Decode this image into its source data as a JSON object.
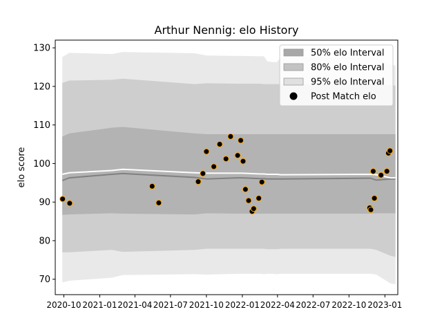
{
  "chart_data": {
    "type": "area",
    "title": "Arthur Nennig: elo History",
    "xlabel": "",
    "ylabel": "elo score",
    "xlim": [
      "2020-09-09",
      "2023-02-03"
    ],
    "ylim": [
      66,
      132
    ],
    "x_ticks": [
      {
        "date": "2020-10-01",
        "label": "2020-10"
      },
      {
        "date": "2021-01-01",
        "label": "2021-01"
      },
      {
        "date": "2021-04-01",
        "label": "2021-04"
      },
      {
        "date": "2021-07-01",
        "label": "2021-07"
      },
      {
        "date": "2021-10-01",
        "label": "2021-10"
      },
      {
        "date": "2022-01-01",
        "label": "2022-01"
      },
      {
        "date": "2022-04-01",
        "label": "2022-04"
      },
      {
        "date": "2022-07-01",
        "label": "2022-07"
      },
      {
        "date": "2022-10-01",
        "label": "2022-10"
      },
      {
        "date": "2023-01-01",
        "label": "2023-01"
      }
    ],
    "y_ticks": [
      70,
      80,
      90,
      100,
      110,
      120,
      130
    ],
    "grid": false,
    "legend_position": "top-right",
    "legend": [
      {
        "label": "50% elo Interval",
        "kind": "patch",
        "color": "#a8a8a8"
      },
      {
        "label": "80% elo Interval",
        "kind": "patch",
        "color": "#c3c3c3"
      },
      {
        "label": "95% elo Interval",
        "kind": "patch",
        "color": "#e0e0e0"
      },
      {
        "label": "Post Match elo",
        "kind": "marker",
        "color": "#000000"
      }
    ],
    "colors": {
      "band_50": "#a9a9a9",
      "band_80": "#c4c4c4",
      "band_95": "#e2e2e2",
      "mean_line": "#808080",
      "post_match_line": "#ffffff",
      "point_fill": "#000000",
      "point_edge": "#ffa500"
    },
    "series": [
      {
        "name": "95% elo Interval",
        "x": [
          "2020-09-27",
          "2020-10-15",
          "2021-02-01",
          "2021-03-01",
          "2021-09-01",
          "2021-10-01",
          "2021-12-20",
          "2022-01-01",
          "2022-02-15",
          "2022-02-25",
          "2022-03-06",
          "2022-03-20",
          "2022-03-30",
          "2022-04-10",
          "2022-11-25",
          "2022-12-10",
          "2023-01-15",
          "2023-01-28"
        ],
        "lower": [
          69.2,
          69.6,
          70.4,
          71.1,
          71.3,
          71.2,
          71.4,
          71.4,
          71.4,
          71.3,
          71.4,
          71.4,
          71.3,
          71.4,
          71.4,
          71.2,
          68.9,
          68.7
        ],
        "upper": [
          127.6,
          128.7,
          128.4,
          128.9,
          128.6,
          128.0,
          127.9,
          127.9,
          127.8,
          127.8,
          126.5,
          126.3,
          126.3,
          127.5,
          127.7,
          127.3,
          125.7,
          125.4
        ]
      },
      {
        "name": "80% elo Interval",
        "x": [
          "2020-09-27",
          "2020-10-15",
          "2021-02-01",
          "2021-03-01",
          "2021-09-01",
          "2021-10-01",
          "2021-12-20",
          "2022-01-01",
          "2022-02-15",
          "2022-02-25",
          "2022-03-06",
          "2022-03-20",
          "2022-03-30",
          "2022-04-10",
          "2022-11-25",
          "2022-12-10",
          "2023-01-15",
          "2023-01-28"
        ],
        "lower": [
          77.0,
          77.0,
          77.6,
          77.1,
          77.6,
          77.9,
          77.9,
          77.9,
          77.9,
          77.9,
          77.8,
          77.8,
          77.8,
          77.9,
          77.9,
          77.6,
          76.1,
          75.8
        ],
        "upper": [
          120.9,
          121.5,
          121.7,
          122.0,
          120.6,
          120.8,
          120.7,
          120.7,
          120.7,
          120.6,
          120.6,
          120.6,
          120.6,
          120.6,
          120.7,
          120.5,
          120.3,
          120.2
        ]
      },
      {
        "name": "50% elo Interval",
        "x": [
          "2020-09-27",
          "2020-10-15",
          "2021-02-01",
          "2021-03-01",
          "2021-09-01",
          "2021-10-01",
          "2021-12-20",
          "2022-01-01",
          "2022-02-15",
          "2022-02-25",
          "2022-03-06",
          "2022-03-20",
          "2022-03-30",
          "2022-04-10",
          "2022-11-25",
          "2022-12-10",
          "2023-01-15",
          "2023-01-28"
        ],
        "lower": [
          86.7,
          86.8,
          87.1,
          87.0,
          86.8,
          87.1,
          87.0,
          87.0,
          87.0,
          87.0,
          87.0,
          87.0,
          87.0,
          87.0,
          87.0,
          87.1,
          87.1,
          87.1
        ],
        "upper": [
          107.0,
          107.8,
          109.3,
          109.5,
          107.8,
          107.6,
          107.6,
          107.6,
          107.6,
          107.6,
          107.6,
          107.6,
          107.6,
          107.6,
          107.6,
          107.6,
          107.6,
          107.6
        ]
      },
      {
        "name": "mean",
        "x": [
          "2020-09-27",
          "2020-10-15",
          "2021-02-01",
          "2021-03-01",
          "2021-09-01",
          "2021-10-01",
          "2021-12-20",
          "2022-01-01",
          "2022-02-15",
          "2022-02-25",
          "2022-03-06",
          "2022-03-20",
          "2022-03-30",
          "2022-04-10",
          "2022-11-25",
          "2022-12-10",
          "2023-01-15",
          "2023-01-28"
        ],
        "y": [
          95.6,
          96.3,
          97.2,
          97.4,
          96.4,
          96.0,
          96.3,
          96.3,
          96.1,
          96.1,
          96.0,
          96.0,
          96.0,
          96.0,
          96.2,
          95.7,
          96.0,
          96.0
        ]
      },
      {
        "name": "post_match",
        "x": [
          "2020-09-27",
          "2020-10-15",
          "2021-02-01",
          "2021-03-01",
          "2021-09-01",
          "2021-10-01",
          "2021-12-20",
          "2022-01-01",
          "2022-02-15",
          "2022-02-25",
          "2022-03-06",
          "2022-03-20",
          "2022-03-30",
          "2022-04-10",
          "2022-11-25",
          "2022-12-10",
          "2023-01-15",
          "2023-01-28"
        ],
        "y": [
          97.2,
          97.6,
          98.2,
          98.5,
          97.6,
          97.5,
          97.5,
          97.5,
          97.3,
          97.3,
          97.2,
          97.2,
          97.2,
          97.1,
          97.2,
          97.1,
          96.3,
          96.3
        ]
      },
      {
        "name": "Post Match elo",
        "x": [
          "2020-09-28",
          "2020-10-16",
          "2021-05-15",
          "2021-06-01",
          "2021-09-10",
          "2021-09-22",
          "2021-10-01",
          "2021-10-20",
          "2021-11-04",
          "2021-11-20",
          "2021-12-02",
          "2021-12-20",
          "2021-12-28",
          "2022-01-03",
          "2022-01-09",
          "2022-01-17",
          "2022-01-26",
          "2022-01-30",
          "2022-02-12",
          "2022-02-20",
          "2022-11-23",
          "2022-11-26",
          "2022-12-02",
          "2022-12-05",
          "2022-12-22",
          "2023-01-06",
          "2023-01-10",
          "2023-01-14"
        ],
        "y": [
          90.8,
          89.7,
          94.1,
          89.8,
          95.3,
          97.4,
          103.1,
          99.2,
          105.0,
          101.2,
          107.0,
          102.1,
          106.0,
          100.6,
          93.3,
          90.4,
          87.6,
          88.3,
          91.0,
          95.2,
          88.5,
          88.0,
          98.0,
          91.0,
          97.0,
          98.0,
          102.7,
          103.3
        ]
      }
    ]
  }
}
